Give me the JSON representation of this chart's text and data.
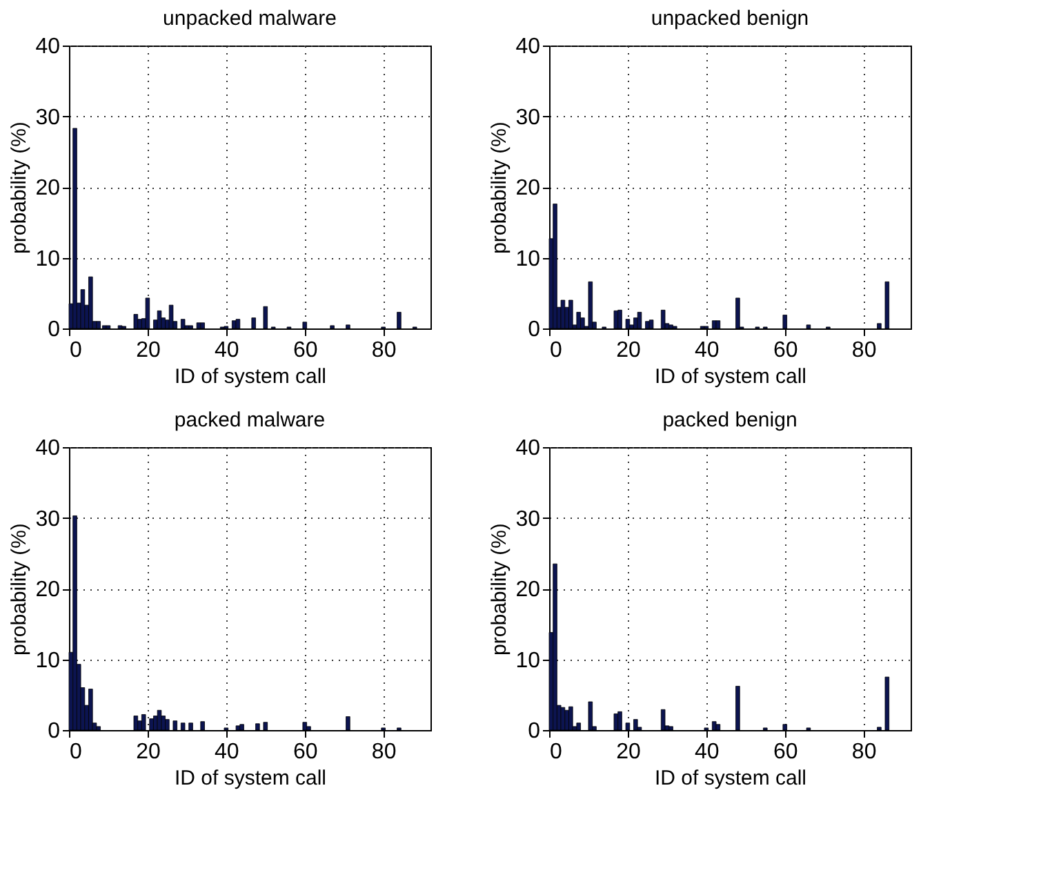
{
  "chart_data": [
    {
      "type": "bar",
      "title": "unpacked malware",
      "xlabel": "ID of system call",
      "ylabel": "probability (%)",
      "xlim": [
        0,
        92
      ],
      "xticks": [
        0,
        20,
        40,
        60,
        80
      ],
      "ylim": [
        0,
        40
      ],
      "yticks": [
        0,
        10,
        20,
        30,
        40
      ],
      "grid": true,
      "line_style": "dotted",
      "color": "#0c1450",
      "x": [
        0.5,
        1.5,
        2.5,
        3.5,
        4.5,
        5.5,
        6.5,
        7.5,
        9,
        10,
        13,
        14,
        17,
        18,
        19,
        20,
        22,
        23,
        24,
        25,
        26,
        27,
        29,
        30,
        31,
        33,
        34,
        39,
        40,
        42,
        43,
        47,
        50,
        52,
        56,
        60,
        67,
        71,
        80,
        84,
        88
      ],
      "values": [
        3.5,
        28.3,
        3.6,
        5.5,
        3.3,
        7.3,
        1,
        1,
        0.4,
        0.4,
        0.4,
        0.3,
        2,
        1.3,
        1.4,
        4.3,
        1.2,
        2.5,
        1.5,
        1.2,
        3.3,
        1,
        1.3,
        0.4,
        0.4,
        0.8,
        0.8,
        0.2,
        0.3,
        1.1,
        1.3,
        1.5,
        3.1,
        0.2,
        0.2,
        0.9,
        0.4,
        0.5,
        0.2,
        2.3,
        0.2
      ]
    },
    {
      "type": "bar",
      "title": "unpacked benign",
      "xlabel": "ID of system call",
      "ylabel": "probability (%)",
      "xlim": [
        0,
        92
      ],
      "xticks": [
        0,
        20,
        40,
        60,
        80
      ],
      "ylim": [
        0,
        40
      ],
      "yticks": [
        0,
        10,
        20,
        30,
        40
      ],
      "grid": true,
      "line_style": "dotted",
      "color": "#0c1450",
      "x": [
        0.5,
        1.5,
        2.5,
        3.5,
        4.5,
        5.5,
        6.5,
        7.5,
        8.5,
        9.5,
        10.5,
        11.5,
        14,
        17,
        18,
        20,
        21,
        22,
        23,
        25,
        26,
        29,
        30,
        31,
        32,
        39,
        40,
        42,
        43,
        48,
        49,
        53,
        55,
        60,
        66,
        71,
        84,
        86
      ],
      "values": [
        12.7,
        17.6,
        3,
        4,
        3,
        4,
        0.5,
        2.3,
        1.5,
        0.3,
        6.6,
        0.9,
        0.2,
        2.5,
        2.6,
        1.3,
        0.5,
        1.5,
        2.3,
        1,
        1.2,
        2.6,
        0.7,
        0.5,
        0.3,
        0.3,
        0.3,
        1.1,
        1.1,
        4.3,
        0.2,
        0.2,
        0.2,
        1.9,
        0.5,
        0.2,
        0.7,
        6.6
      ]
    },
    {
      "type": "bar",
      "title": "packed malware",
      "xlabel": "ID of system call",
      "ylabel": "probability (%)",
      "xlim": [
        0,
        92
      ],
      "xticks": [
        0,
        20,
        40,
        60,
        80
      ],
      "ylim": [
        0,
        40
      ],
      "yticks": [
        0,
        10,
        20,
        30,
        40
      ],
      "grid": true,
      "line_style": "dotted",
      "color": "#0c1450",
      "x": [
        0.5,
        1.5,
        2.5,
        3.5,
        4.5,
        5.5,
        6.5,
        7.5,
        17,
        18,
        19,
        21,
        22,
        23,
        24,
        25,
        27,
        29,
        31,
        34,
        40,
        43,
        44,
        48,
        50,
        60,
        61,
        71,
        80,
        84
      ],
      "values": [
        11,
        30.3,
        9.3,
        6,
        3.5,
        5.8,
        1,
        0.5,
        2,
        1.3,
        2.2,
        1.6,
        2,
        2.8,
        2,
        1.5,
        1.3,
        1,
        1,
        1.2,
        0.3,
        0.6,
        0.8,
        0.9,
        1.1,
        1.1,
        0.5,
        1.9,
        0.3,
        0.3
      ]
    },
    {
      "type": "bar",
      "title": "packed benign",
      "xlabel": "ID of system call",
      "ylabel": "probability (%)",
      "xlim": [
        0,
        92
      ],
      "xticks": [
        0,
        20,
        40,
        60,
        80
      ],
      "ylim": [
        0,
        40
      ],
      "yticks": [
        0,
        10,
        20,
        30,
        40
      ],
      "grid": true,
      "line_style": "dotted",
      "color": "#0c1450",
      "x": [
        0.5,
        1.5,
        2.5,
        3.5,
        4.5,
        5.5,
        6.5,
        7.5,
        10.5,
        11.5,
        17,
        18,
        20,
        22,
        23,
        29,
        30,
        31,
        40,
        42,
        43,
        48,
        55,
        60,
        66,
        84,
        86
      ],
      "values": [
        13.8,
        23.5,
        3.5,
        3.2,
        2.8,
        3.3,
        0.5,
        1,
        4,
        0.5,
        2.3,
        2.6,
        1,
        1.5,
        0.4,
        2.9,
        0.6,
        0.5,
        0.3,
        1.2,
        0.8,
        6.2,
        0.3,
        0.8,
        0.3,
        0.4,
        7.5
      ]
    }
  ]
}
